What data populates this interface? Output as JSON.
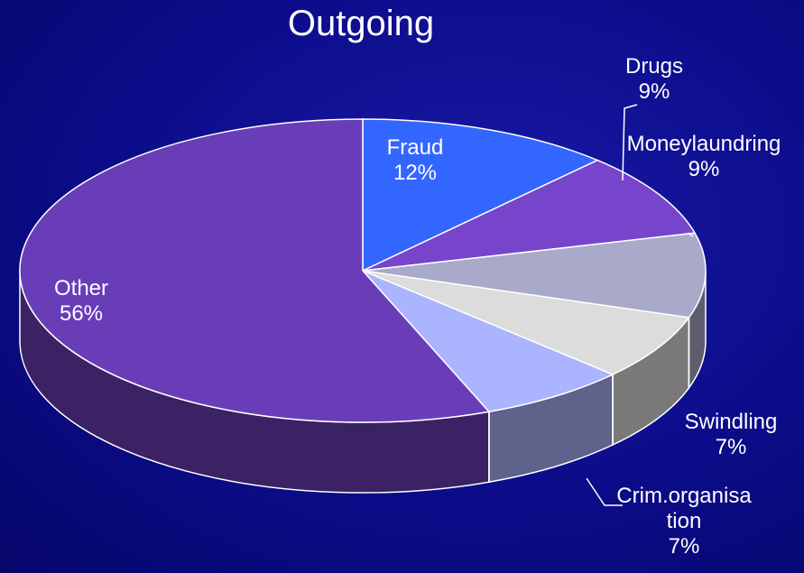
{
  "chart_data": {
    "type": "pie",
    "title": "Outgoing",
    "categories": [
      "Fraud",
      "Drugs",
      "Moneylaundring",
      "Swindling",
      "Crim.organisation",
      "Other"
    ],
    "values": [
      12,
      9,
      9,
      7,
      7,
      56
    ],
    "value_labels": [
      "12%",
      "9%",
      "9%",
      "7%",
      "7%",
      "56%"
    ],
    "colors": [
      "#3366ff",
      "#7744cc",
      "#a9a9c9",
      "#dcdcdc",
      "#aab4ff",
      "#6a3db8"
    ]
  }
}
